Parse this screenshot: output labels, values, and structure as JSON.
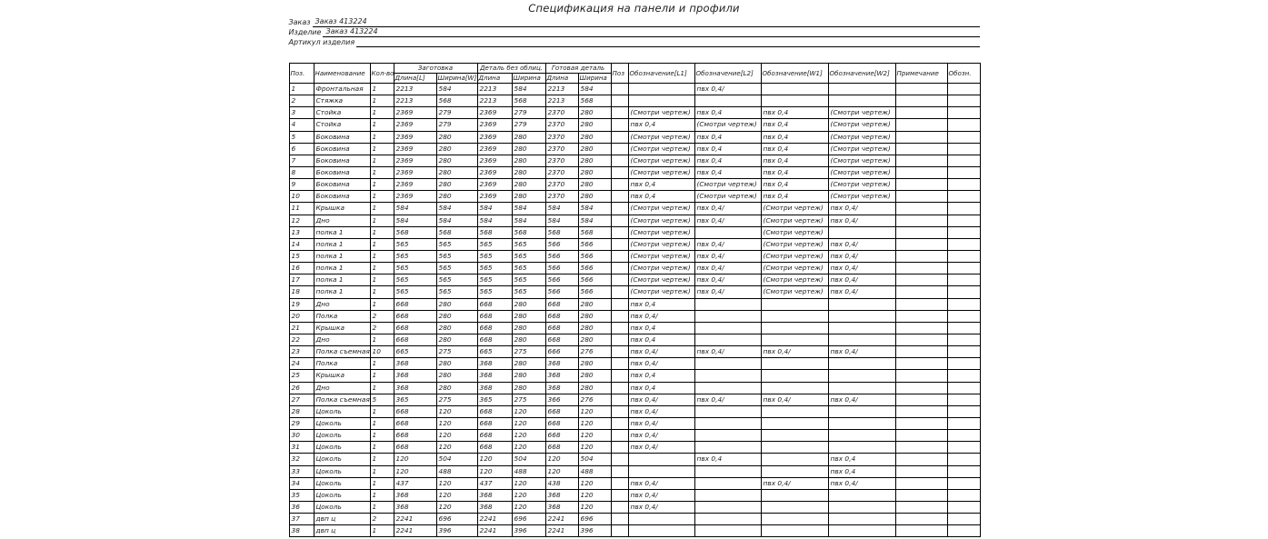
{
  "title": "Спецификация на панели и профили",
  "colors": {
    "ink": "#1d1d1d",
    "paper": "#ffffff",
    "line": "#000000"
  },
  "meta": [
    {
      "label": "Заказ",
      "value": "Заказ 413224"
    },
    {
      "label": "Изделие",
      "value": "Заказ 413224"
    },
    {
      "label": "Артикул изделия",
      "value": ""
    }
  ],
  "table": {
    "header": {
      "pos": "Поз.",
      "name": "Наименование",
      "qty": "Кол-во",
      "group_blank": "Заготовка",
      "group_unfaced": "Деталь без облиц.",
      "group_finished": "Готовая деталь",
      "blank_len": "Длина[L]",
      "blank_wid": "Ширина[W]",
      "unfaced_len": "Длина",
      "unfaced_wid": "Ширина",
      "finished_len": "Длина",
      "finished_wid": "Ширина",
      "pos2": "Поз",
      "mark_l1": "Обозначение[L1]",
      "mark_l2": "Обозначение[L2]",
      "mark_w1": "Обозначение[W1]",
      "mark_w2": "Обозначение[W2]",
      "note": "Примечание",
      "mark": "Обозн."
    },
    "col_names": [
      "cell-pos",
      "cell-name",
      "cell-qty",
      "cell-blank-len",
      "cell-blank-wid",
      "cell-unfaced-len",
      "cell-unfaced-wid",
      "cell-finished-len",
      "cell-finished-wid",
      "cell-pos2",
      "cell-mark-l1",
      "cell-mark-l2",
      "cell-mark-w1",
      "cell-mark-w2",
      "cell-note",
      "cell-mark"
    ],
    "rows": [
      [
        "1",
        "Фронтальная",
        "1",
        "2213",
        "584",
        "2213",
        "584",
        "2213",
        "584",
        "",
        "",
        "пвх 0,4/",
        "",
        "",
        "",
        ""
      ],
      [
        "2",
        "Стяжка",
        "1",
        "2213",
        "568",
        "2213",
        "568",
        "2213",
        "568",
        "",
        "",
        "",
        "",
        "",
        "",
        ""
      ],
      [
        "3",
        "Стойка",
        "1",
        "2369",
        "279",
        "2369",
        "279",
        "2370",
        "280",
        "",
        "(Смотри чертеж)",
        "пвх 0,4",
        "пвх 0,4",
        "(Смотри чертеж)",
        "",
        ""
      ],
      [
        "4",
        "Стойка",
        "1",
        "2369",
        "279",
        "2369",
        "279",
        "2370",
        "280",
        "",
        "пвх 0,4",
        "(Смотри чертеж)",
        "пвх 0,4",
        "(Смотри чертеж)",
        "",
        ""
      ],
      [
        "5",
        "Боковина",
        "1",
        "2369",
        "280",
        "2369",
        "280",
        "2370",
        "280",
        "",
        "(Смотри чертеж)",
        "пвх 0,4",
        "пвх 0,4",
        "(Смотри чертеж)",
        "",
        ""
      ],
      [
        "6",
        "Боковина",
        "1",
        "2369",
        "280",
        "2369",
        "280",
        "2370",
        "280",
        "",
        "(Смотри чертеж)",
        "пвх 0,4",
        "пвх 0,4",
        "(Смотри чертеж)",
        "",
        ""
      ],
      [
        "7",
        "Боковина",
        "1",
        "2369",
        "280",
        "2369",
        "280",
        "2370",
        "280",
        "",
        "(Смотри чертеж)",
        "пвх 0,4",
        "пвх 0,4",
        "(Смотри чертеж)",
        "",
        ""
      ],
      [
        "8",
        "Боковина",
        "1",
        "2369",
        "280",
        "2369",
        "280",
        "2370",
        "280",
        "",
        "(Смотри чертеж)",
        "пвх 0,4",
        "пвх 0,4",
        "(Смотри чертеж)",
        "",
        ""
      ],
      [
        "9",
        "Боковина",
        "1",
        "2369",
        "280",
        "2369",
        "280",
        "2370",
        "280",
        "",
        "пвх 0,4",
        "(Смотри чертеж)",
        "пвх 0,4",
        "(Смотри чертеж)",
        "",
        ""
      ],
      [
        "10",
        "Боковина",
        "1",
        "2369",
        "280",
        "2369",
        "280",
        "2370",
        "280",
        "",
        "пвх 0,4",
        "(Смотри чертеж)",
        "пвх 0,4",
        "(Смотри чертеж)",
        "",
        ""
      ],
      [
        "11",
        "Крышка",
        "1",
        "584",
        "584",
        "584",
        "584",
        "584",
        "584",
        "",
        "(Смотри чертеж)",
        "пвх 0,4/",
        "(Смотри чертеж)",
        "пвх 0,4/",
        "",
        ""
      ],
      [
        "12",
        "Дно",
        "1",
        "584",
        "584",
        "584",
        "584",
        "584",
        "584",
        "",
        "(Смотри чертеж)",
        "пвх 0,4/",
        "(Смотри чертеж)",
        "пвх 0,4/",
        "",
        ""
      ],
      [
        "13",
        "полка 1",
        "1",
        "568",
        "568",
        "568",
        "568",
        "568",
        "568",
        "",
        "(Смотри чертеж)",
        "",
        "(Смотри чертеж)",
        "",
        "",
        ""
      ],
      [
        "14",
        "полка 1",
        "1",
        "565",
        "565",
        "565",
        "565",
        "566",
        "566",
        "",
        "(Смотри чертеж)",
        "пвх 0,4/",
        "(Смотри чертеж)",
        "пвх 0,4/",
        "",
        ""
      ],
      [
        "15",
        "полка 1",
        "1",
        "565",
        "565",
        "565",
        "565",
        "566",
        "566",
        "",
        "(Смотри чертеж)",
        "пвх 0,4/",
        "(Смотри чертеж)",
        "пвх 0,4/",
        "",
        ""
      ],
      [
        "16",
        "полка 1",
        "1",
        "565",
        "565",
        "565",
        "565",
        "566",
        "566",
        "",
        "(Смотри чертеж)",
        "пвх 0,4/",
        "(Смотри чертеж)",
        "пвх 0,4/",
        "",
        ""
      ],
      [
        "17",
        "полка 1",
        "1",
        "565",
        "565",
        "565",
        "565",
        "566",
        "566",
        "",
        "(Смотри чертеж)",
        "пвх 0,4/",
        "(Смотри чертеж)",
        "пвх 0,4/",
        "",
        ""
      ],
      [
        "18",
        "полка 1",
        "1",
        "565",
        "565",
        "565",
        "565",
        "566",
        "566",
        "",
        "(Смотри чертеж)",
        "пвх 0,4/",
        "(Смотри чертеж)",
        "пвх 0,4/",
        "",
        ""
      ],
      [
        "19",
        "Дно",
        "1",
        "668",
        "280",
        "668",
        "280",
        "668",
        "280",
        "",
        "пвх 0,4",
        "",
        "",
        "",
        "",
        ""
      ],
      [
        "20",
        "Полка",
        "2",
        "668",
        "280",
        "668",
        "280",
        "668",
        "280",
        "",
        "пвх 0,4/",
        "",
        "",
        "",
        "",
        ""
      ],
      [
        "21",
        "Крышка",
        "2",
        "668",
        "280",
        "668",
        "280",
        "668",
        "280",
        "",
        "пвх 0,4",
        "",
        "",
        "",
        "",
        ""
      ],
      [
        "22",
        "Дно",
        "1",
        "668",
        "280",
        "668",
        "280",
        "668",
        "280",
        "",
        "пвх 0,4",
        "",
        "",
        "",
        "",
        ""
      ],
      [
        "23",
        "Полка съемная",
        "10",
        "665",
        "275",
        "665",
        "275",
        "666",
        "276",
        "",
        "пвх 0,4/",
        "пвх 0,4/",
        "пвх 0,4/",
        "пвх 0,4/",
        "",
        ""
      ],
      [
        "24",
        "Полка",
        "1",
        "368",
        "280",
        "368",
        "280",
        "368",
        "280",
        "",
        "пвх 0,4/",
        "",
        "",
        "",
        "",
        ""
      ],
      [
        "25",
        "Крышка",
        "1",
        "368",
        "280",
        "368",
        "280",
        "368",
        "280",
        "",
        "пвх 0,4",
        "",
        "",
        "",
        "",
        ""
      ],
      [
        "26",
        "Дно",
        "1",
        "368",
        "280",
        "368",
        "280",
        "368",
        "280",
        "",
        "пвх 0,4",
        "",
        "",
        "",
        "",
        ""
      ],
      [
        "27",
        "Полка съемная",
        "5",
        "365",
        "275",
        "365",
        "275",
        "366",
        "276",
        "",
        "пвх 0,4/",
        "пвх 0,4/",
        "пвх 0,4/",
        "пвх 0,4/",
        "",
        ""
      ],
      [
        "28",
        "Цоколь",
        "1",
        "668",
        "120",
        "668",
        "120",
        "668",
        "120",
        "",
        "пвх 0,4/",
        "",
        "",
        "",
        "",
        ""
      ],
      [
        "29",
        "Цоколь",
        "1",
        "668",
        "120",
        "668",
        "120",
        "668",
        "120",
        "",
        "пвх 0,4/",
        "",
        "",
        "",
        "",
        ""
      ],
      [
        "30",
        "Цоколь",
        "1",
        "668",
        "120",
        "668",
        "120",
        "668",
        "120",
        "",
        "пвх 0,4/",
        "",
        "",
        "",
        "",
        ""
      ],
      [
        "31",
        "Цоколь",
        "1",
        "668",
        "120",
        "668",
        "120",
        "668",
        "120",
        "",
        "пвх 0,4/",
        "",
        "",
        "",
        "",
        ""
      ],
      [
        "32",
        "Цоколь",
        "1",
        "120",
        "504",
        "120",
        "504",
        "120",
        "504",
        "",
        "",
        "пвх 0,4",
        "",
        "пвх 0,4",
        "",
        ""
      ],
      [
        "33",
        "Цоколь",
        "1",
        "120",
        "488",
        "120",
        "488",
        "120",
        "488",
        "",
        "",
        "",
        "",
        "пвх 0,4",
        "",
        ""
      ],
      [
        "34",
        "Цоколь",
        "1",
        "437",
        "120",
        "437",
        "120",
        "438",
        "120",
        "",
        "пвх 0,4/",
        "",
        "пвх 0,4/",
        "пвх 0,4/",
        "",
        ""
      ],
      [
        "35",
        "Цоколь",
        "1",
        "368",
        "120",
        "368",
        "120",
        "368",
        "120",
        "",
        "пвх 0,4/",
        "",
        "",
        "",
        "",
        ""
      ],
      [
        "36",
        "Цоколь",
        "1",
        "368",
        "120",
        "368",
        "120",
        "368",
        "120",
        "",
        "пвх 0,4/",
        "",
        "",
        "",
        "",
        ""
      ],
      [
        "37",
        "двп ц",
        "2",
        "2241",
        "696",
        "2241",
        "696",
        "2241",
        "696",
        "",
        "",
        "",
        "",
        "",
        "",
        ""
      ],
      [
        "38",
        "двп ц",
        "1",
        "2241",
        "396",
        "2241",
        "396",
        "2241",
        "396",
        "",
        "",
        "",
        "",
        "",
        "",
        ""
      ]
    ]
  }
}
